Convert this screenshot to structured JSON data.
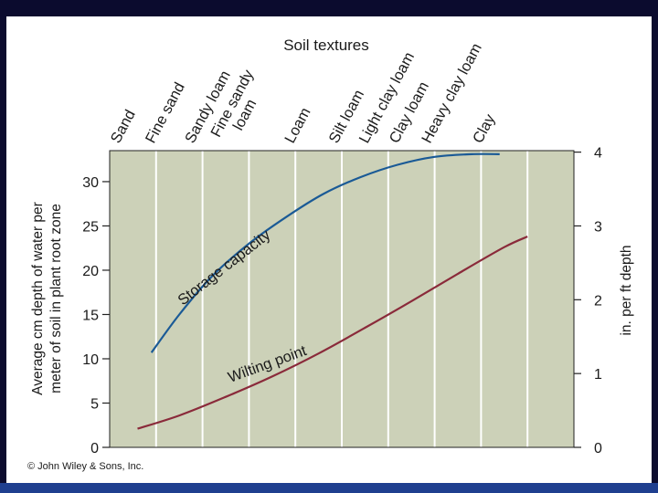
{
  "copyright": "© John Wiley & Sons, Inc.",
  "colors": {
    "frame": "#0b0b2e",
    "bottom_bar": "#1f3f8f",
    "plot_bg": "#ccd1b8",
    "grid": "#ffffff",
    "storage": "#1a5a96",
    "wilting": "#8a2a3a"
  },
  "chart_data": {
    "type": "line",
    "title": "Soil textures",
    "ylabel": "Average cm depth of water per meter of soil in plant root zone",
    "y2label": "in. per ft depth",
    "ylim": [
      0,
      33.5
    ],
    "y2lim": [
      0,
      4.02
    ],
    "yticks": [
      0,
      5,
      10,
      15,
      20,
      25,
      30
    ],
    "y2ticks": [
      0,
      1,
      2,
      3,
      4
    ],
    "x_range": [
      0,
      10
    ],
    "categories": [
      "Sand",
      "Fine sand",
      "Sandy loam",
      "Fine sandy loam",
      "Loam",
      "Silt loam",
      "Light clay loam",
      "Clay loam",
      "Heavy clay loam",
      "Clay"
    ],
    "category_positions": [
      0.2,
      0.95,
      1.8,
      2.6,
      3.95,
      4.9,
      5.55,
      6.2,
      6.9,
      8.0
    ],
    "series": [
      {
        "name": "Storage capacity",
        "x": [
          0.9,
          1.5,
          2.2,
          3.0,
          3.8,
          4.6,
          5.4,
          6.2,
          7.0,
          7.8,
          8.4
        ],
        "values": [
          10.7,
          15.0,
          19.3,
          23.0,
          26.0,
          28.6,
          30.5,
          31.9,
          32.8,
          33.1,
          33.1
        ]
      },
      {
        "name": "Wilting point",
        "x": [
          0.6,
          1.5,
          2.5,
          3.5,
          4.5,
          5.5,
          6.5,
          7.5,
          8.5,
          9.0
        ],
        "values": [
          2.1,
          3.6,
          5.7,
          8.0,
          10.6,
          13.5,
          16.5,
          19.6,
          22.6,
          23.8
        ]
      }
    ]
  }
}
